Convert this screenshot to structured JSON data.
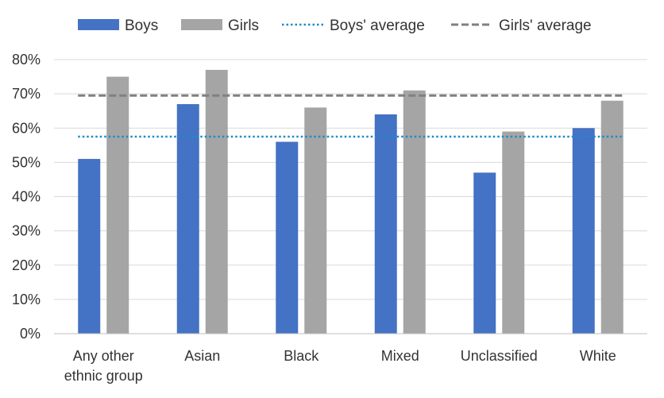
{
  "chart_data": {
    "type": "bar",
    "categories": [
      [
        "Any other",
        "ethnic group"
      ],
      [
        "Asian"
      ],
      [
        "Black"
      ],
      [
        "Mixed"
      ],
      [
        "Unclassified"
      ],
      [
        "White"
      ]
    ],
    "series": [
      {
        "name": "Boys",
        "color": "#4472c4",
        "values": [
          51,
          67,
          56,
          64,
          47,
          60
        ]
      },
      {
        "name": "Girls",
        "color": "#a5a5a5",
        "values": [
          75,
          77,
          66,
          71,
          59,
          68
        ]
      }
    ],
    "reference_lines": [
      {
        "name": "Boys' average",
        "value": 57.5,
        "color": "#1f8bc7",
        "style": "dotted"
      },
      {
        "name": "Girls' average",
        "value": 69.5,
        "color": "#808080",
        "style": "dashed"
      }
    ],
    "y_ticks": [
      "0%",
      "10%",
      "20%",
      "30%",
      "40%",
      "50%",
      "60%",
      "70%",
      "80%"
    ],
    "ylim": [
      0,
      80
    ],
    "y_unit": "%",
    "grid": true,
    "legend_position": "top",
    "title": "",
    "xlabel": "",
    "ylabel": ""
  }
}
